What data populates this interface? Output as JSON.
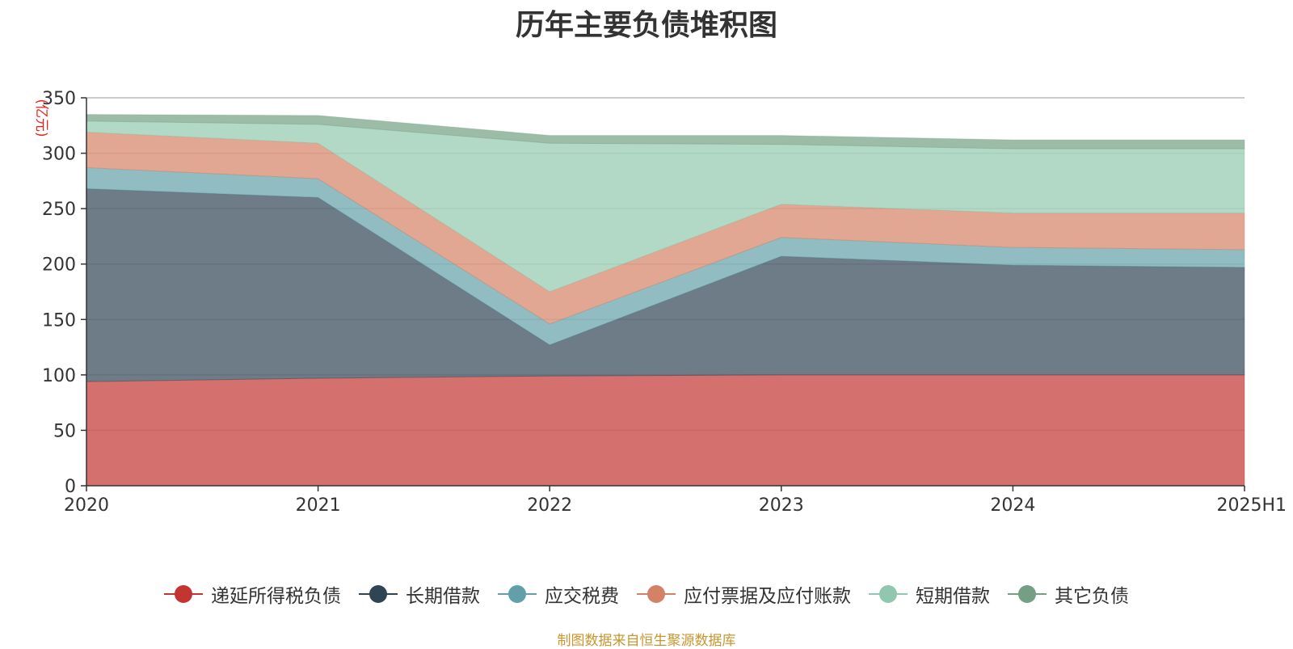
{
  "chart_data": {
    "type": "area",
    "stacked": true,
    "title": "历年主要负债堆积图",
    "ylabel": "(亿元)",
    "xlabel": "",
    "categories": [
      "2020",
      "2021",
      "2022",
      "2023",
      "2024",
      "2025H1"
    ],
    "ylim": [
      0,
      350
    ],
    "yticks": [
      0,
      50,
      100,
      150,
      200,
      250,
      300,
      350
    ],
    "grid": true,
    "legend_position": "bottom",
    "series": [
      {
        "name": "递延所得税负债",
        "color": "#c23531",
        "values": [
          94,
          97,
          99,
          100,
          100,
          100
        ]
      },
      {
        "name": "长期借款",
        "color": "#2f4554",
        "values": [
          174,
          163,
          28,
          107,
          99,
          97
        ]
      },
      {
        "name": "应交税费",
        "color": "#61a0a8",
        "values": [
          19,
          17,
          19,
          17,
          16,
          16
        ]
      },
      {
        "name": "应付票据及应付账款",
        "color": "#d48265",
        "values": [
          32,
          32,
          29,
          30,
          31,
          33
        ]
      },
      {
        "name": "短期借款",
        "color": "#91c7ae",
        "values": [
          10,
          17,
          134,
          54,
          58,
          58
        ]
      },
      {
        "name": "其它负债",
        "color": "#749f83",
        "values": [
          6,
          8,
          7,
          8,
          8,
          8
        ]
      }
    ]
  },
  "source_text": "制图数据来自恒生聚源数据库"
}
